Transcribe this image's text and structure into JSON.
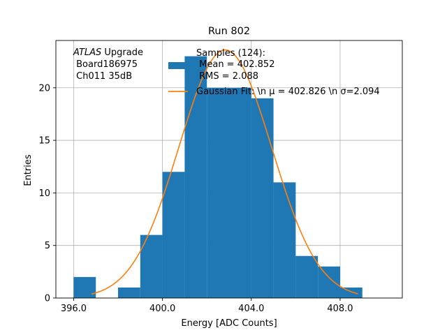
{
  "chart_data": {
    "type": "bar",
    "title": "Run 802",
    "xlabel": "Energy [ADC Counts]",
    "ylabel": "Entries",
    "xlim": [
      395.2,
      410.8
    ],
    "ylim": [
      0,
      24.5
    ],
    "xticks": [
      396,
      400,
      404,
      408
    ],
    "xtick_labels": [
      "396.0",
      "400.0",
      "404.0",
      "408.0"
    ],
    "yticks": [
      0,
      5,
      10,
      15,
      20
    ],
    "ytick_labels": [
      "0",
      "5",
      "10",
      "15",
      "20"
    ],
    "grid": true,
    "histogram": {
      "bin_edges": [
        396,
        397,
        398,
        399,
        400,
        401,
        402,
        403,
        404,
        405,
        406,
        407,
        408,
        409
      ],
      "counts": [
        2,
        0,
        1,
        6,
        12,
        23,
        20,
        20,
        19,
        11,
        4,
        3,
        1
      ],
      "color": "#1f77b4"
    },
    "gaussian_fit": {
      "mu": 402.826,
      "sigma": 2.094,
      "x_range": [
        396.8,
        408.8
      ],
      "peak": 23.6,
      "color": "#ff7f0e"
    },
    "annotation": {
      "line1_italic": "ATLAS",
      "line1_rest": " Upgrade",
      "line2": " Board186975",
      "line3": " Ch011 35dB"
    },
    "legend": {
      "placement": "top-right",
      "hist_label_lines": [
        "Samples (124):",
        " Mean = 402.852",
        " RMS = 2.088"
      ],
      "fit_label": "Gaussian Fit: \\n μ = 402.826 \\n σ=2.094"
    }
  }
}
